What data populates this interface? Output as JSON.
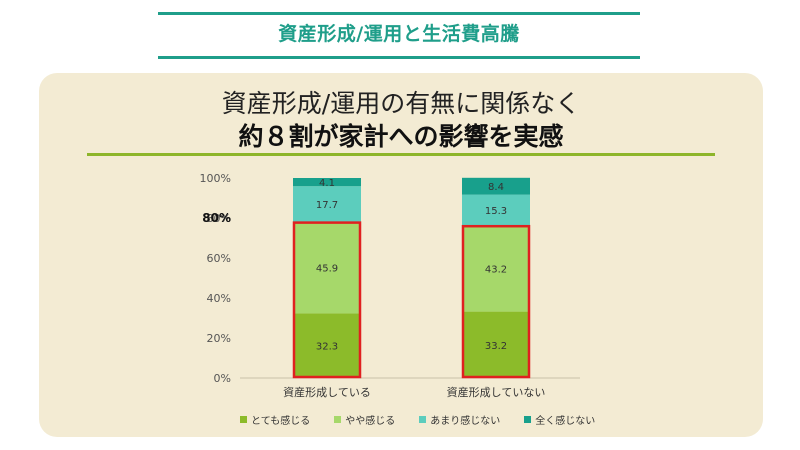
{
  "header": {
    "title": "資産形成/運用と生活費高騰"
  },
  "slide": {
    "title_line1": "資産形成/運用の有無に関係なく",
    "title_line2": "約８割が家計への影響を実感"
  },
  "colors": {
    "accent_teal": "#1f9e8a",
    "accent_green": "#8db52a",
    "panel_bg": "#f3ebd3",
    "highlight_box": "#e02020"
  },
  "chart_data": {
    "type": "bar",
    "stacked": true,
    "categories": [
      "資産形成している",
      "資産形成していない"
    ],
    "series": [
      {
        "name": "とても感じる",
        "color": "#8cbb2a",
        "values": [
          32.3,
          33.2
        ]
      },
      {
        "name": "やや感じる",
        "color": "#a6d86a",
        "values": [
          45.9,
          43.2
        ]
      },
      {
        "name": "あまり感じない",
        "color": "#5ccdbd",
        "values": [
          17.7,
          15.3
        ]
      },
      {
        "name": "全く感じない",
        "color": "#18a08c",
        "values": [
          4.1,
          8.4
        ]
      }
    ],
    "y_ticks": [
      "0%",
      "20%",
      "40%",
      "60%",
      "80%",
      "100%"
    ],
    "y_tick_values": [
      0,
      20,
      40,
      60,
      80,
      100
    ],
    "ylim": [
      0,
      100
    ],
    "annotation": "80%",
    "highlighted_series": [
      "とても感じる",
      "やや感じる"
    ],
    "legend_position": "bottom"
  }
}
